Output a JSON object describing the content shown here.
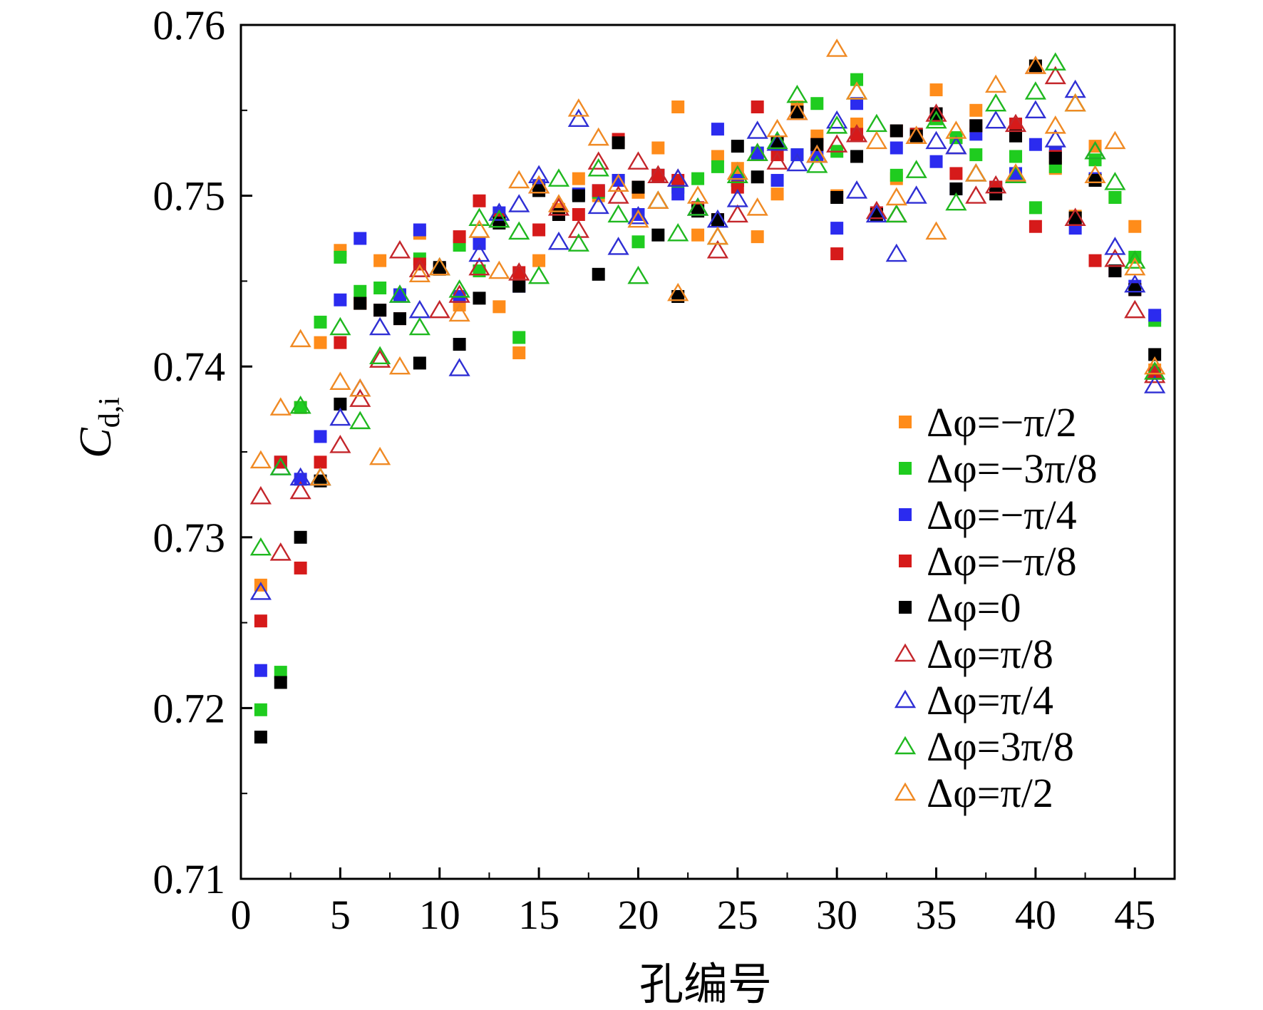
{
  "chart_data": {
    "type": "scatter",
    "xlabel": "孔编号",
    "ylabel": {
      "main": "C",
      "sub": "d,i"
    },
    "xlim": [
      0,
      47
    ],
    "ylim": [
      0.71,
      0.76
    ],
    "x_ticks": [
      "0",
      "5",
      "10",
      "15",
      "20",
      "25",
      "30",
      "35",
      "40",
      "45"
    ],
    "y_ticks": [
      "0.71",
      "0.72",
      "0.73",
      "0.74",
      "0.75",
      "0.76"
    ],
    "legend_position": "lower-right",
    "x": [
      1,
      2,
      3,
      4,
      5,
      6,
      7,
      8,
      9,
      10,
      11,
      12,
      13,
      14,
      15,
      16,
      17,
      18,
      19,
      20,
      21,
      22,
      23,
      24,
      25,
      26,
      27,
      28,
      29,
      30,
      31,
      32,
      33,
      34,
      35,
      36,
      37,
      38,
      39,
      40,
      41,
      42,
      43,
      44,
      45,
      46
    ],
    "series": [
      {
        "name": "Δφ=−π/2",
        "marker": "square",
        "color": "#ff8c1a",
        "values": [
          0.7272,
          0.7344,
          0.7376,
          0.7414,
          0.7468,
          0.7437,
          0.7462,
          0.7442,
          0.7478,
          0.7457,
          0.7436,
          0.7456,
          0.7435,
          0.7408,
          0.7462,
          0.7492,
          0.751,
          0.75,
          0.7509,
          0.7502,
          0.7528,
          0.7552,
          0.7477,
          0.7523,
          0.7516,
          0.7476,
          0.7501,
          0.7552,
          0.7535,
          0.75,
          0.7542,
          0.749,
          0.751,
          0.7536,
          0.7562,
          0.7534,
          0.755,
          0.7505,
          0.7523,
          0.7576,
          0.7516,
          0.7488,
          0.7529,
          0.7499,
          0.7482,
          0.7398
        ]
      },
      {
        "name": "Δφ=−3π/8",
        "marker": "square",
        "color": "#1fcc1f",
        "values": [
          0.7199,
          0.7221,
          0.7376,
          0.7426,
          0.7464,
          0.7444,
          0.7446,
          0.7442,
          0.7463,
          0.7457,
          0.7471,
          0.7456,
          0.7486,
          0.7417,
          0.7505,
          0.7489,
          0.7501,
          0.7502,
          0.7509,
          0.7473,
          0.7512,
          0.7505,
          0.751,
          0.7517,
          0.7509,
          0.7525,
          0.7531,
          0.7524,
          0.7554,
          0.7526,
          0.7568,
          0.749,
          0.7512,
          0.7536,
          0.7545,
          0.7534,
          0.7524,
          0.7504,
          0.7523,
          0.7493,
          0.7517,
          0.7487,
          0.7521,
          0.7499,
          0.7464,
          0.7427
        ]
      },
      {
        "name": "Δφ=−π/4",
        "marker": "square",
        "color": "#2b2bef",
        "values": [
          0.7222,
          0.7344,
          0.7334,
          0.7359,
          0.7439,
          0.7475,
          0.7433,
          0.7442,
          0.748,
          0.7457,
          0.7441,
          0.7472,
          0.749,
          0.7447,
          0.7506,
          0.7489,
          0.7501,
          0.7503,
          0.7509,
          0.7489,
          0.7512,
          0.7501,
          0.7493,
          0.7539,
          0.7509,
          0.7525,
          0.7509,
          0.7524,
          0.7524,
          0.7481,
          0.7554,
          0.749,
          0.7528,
          0.7536,
          0.752,
          0.7504,
          0.7536,
          0.7505,
          0.7513,
          0.753,
          0.7525,
          0.7481,
          0.751,
          0.7456,
          0.7447,
          0.743
        ]
      },
      {
        "name": "Δφ=−π/8",
        "marker": "square",
        "color": "#d61a1a",
        "values": [
          0.7251,
          0.7344,
          0.7282,
          0.7344,
          0.7414,
          0.7437,
          0.7433,
          0.7428,
          0.746,
          0.7457,
          0.7476,
          0.7497,
          0.7486,
          0.7455,
          0.748,
          0.7489,
          0.7489,
          0.7503,
          0.7533,
          0.7505,
          0.7512,
          0.7509,
          0.7493,
          0.7486,
          0.7505,
          0.7552,
          0.7524,
          0.7549,
          0.753,
          0.7466,
          0.7536,
          0.749,
          0.7538,
          0.7536,
          0.7548,
          0.7513,
          0.7541,
          0.7505,
          0.7542,
          0.7482,
          0.7523,
          0.7487,
          0.7462,
          0.7456,
          0.7445,
          0.7396
        ]
      },
      {
        "name": "Δφ=0",
        "marker": "square",
        "color": "#000000",
        "values": [
          0.7183,
          0.7215,
          0.73,
          0.7333,
          0.7378,
          0.7437,
          0.7433,
          0.7428,
          0.7402,
          0.7458,
          0.7413,
          0.744,
          0.7484,
          0.7447,
          0.7503,
          0.7489,
          0.75,
          0.7454,
          0.7531,
          0.7505,
          0.7477,
          0.7441,
          0.7491,
          0.7486,
          0.7529,
          0.7511,
          0.7531,
          0.7549,
          0.753,
          0.7499,
          0.7523,
          0.7489,
          0.7538,
          0.7535,
          0.7548,
          0.7504,
          0.7541,
          0.7501,
          0.7535,
          0.7576,
          0.7522,
          0.7487,
          0.7509,
          0.7456,
          0.7445,
          0.7407
        ]
      }
    ],
    "series_hollow": [
      {
        "name": "Δφ=π/8",
        "marker": "triangle",
        "color": "#c4262b",
        "values": [
          0.7324,
          0.7291,
          0.7327,
          0.7335,
          0.7354,
          0.7381,
          0.7404,
          0.7468,
          0.7457,
          0.7433,
          0.7442,
          0.7458,
          0.7486,
          0.7455,
          0.7506,
          0.7493,
          0.748,
          0.752,
          0.75,
          0.752,
          0.7512,
          0.751,
          0.7493,
          0.7468,
          0.7489,
          0.7525,
          0.752,
          0.7549,
          0.7524,
          0.753,
          0.7536,
          0.7491,
          0.7489,
          0.7535,
          0.7548,
          0.7529,
          0.75,
          0.7506,
          0.7542,
          0.7576,
          0.757,
          0.7487,
          0.7526,
          0.7463,
          0.7433,
          0.7395
        ]
      },
      {
        "name": "Δφ=π/4",
        "marker": "triangle",
        "color": "#2f2fd4",
        "values": [
          0.7268,
          0.7341,
          0.7335,
          0.7335,
          0.737,
          0.7387,
          0.7423,
          0.7442,
          0.7433,
          0.7458,
          0.7399,
          0.7466,
          0.749,
          0.7495,
          0.7512,
          0.7473,
          0.7545,
          0.7494,
          0.747,
          0.7488,
          0.7497,
          0.751,
          0.7493,
          0.7486,
          0.7498,
          0.7538,
          0.7531,
          0.7519,
          0.7524,
          0.7544,
          0.7503,
          0.7489,
          0.7466,
          0.75,
          0.7532,
          0.7529,
          0.7513,
          0.7544,
          0.7512,
          0.755,
          0.7533,
          0.7562,
          0.7526,
          0.747,
          0.7448,
          0.7389
        ]
      },
      {
        "name": "Δφ=3π/8",
        "marker": "triangle",
        "color": "#1fb81f",
        "values": [
          0.7294,
          0.7341,
          0.7377,
          0.7335,
          0.7423,
          0.7368,
          0.7406,
          0.7442,
          0.7423,
          0.7458,
          0.7445,
          0.7487,
          0.7486,
          0.7479,
          0.7453,
          0.751,
          0.7472,
          0.7516,
          0.7489,
          0.7453,
          0.7497,
          0.7478,
          0.7493,
          0.7476,
          0.7512,
          0.7525,
          0.7532,
          0.7559,
          0.7518,
          0.7541,
          0.7561,
          0.7542,
          0.7489,
          0.7515,
          0.7544,
          0.7496,
          0.7513,
          0.7554,
          0.7512,
          0.7561,
          0.7578,
          0.7554,
          0.7526,
          0.7508,
          0.7462,
          0.7397
        ]
      },
      {
        "name": "Δφ=π/2",
        "marker": "triangle",
        "color": "#f08a24",
        "values": [
          0.7345,
          0.7376,
          0.7416,
          0.7335,
          0.7391,
          0.7387,
          0.7347,
          0.74,
          0.7454,
          0.7458,
          0.7431,
          0.748,
          0.7456,
          0.7509,
          0.7506,
          0.7495,
          0.7551,
          0.7534,
          0.7507,
          0.7486,
          0.7497,
          0.7443,
          0.75,
          0.7476,
          0.7514,
          0.7493,
          0.7539,
          0.7549,
          0.7524,
          0.7586,
          0.7561,
          0.7532,
          0.7499,
          0.7535,
          0.7479,
          0.7538,
          0.7513,
          0.7565,
          0.7513,
          0.7576,
          0.7541,
          0.7554,
          0.7512,
          0.7532,
          0.7458,
          0.74
        ]
      }
    ]
  }
}
